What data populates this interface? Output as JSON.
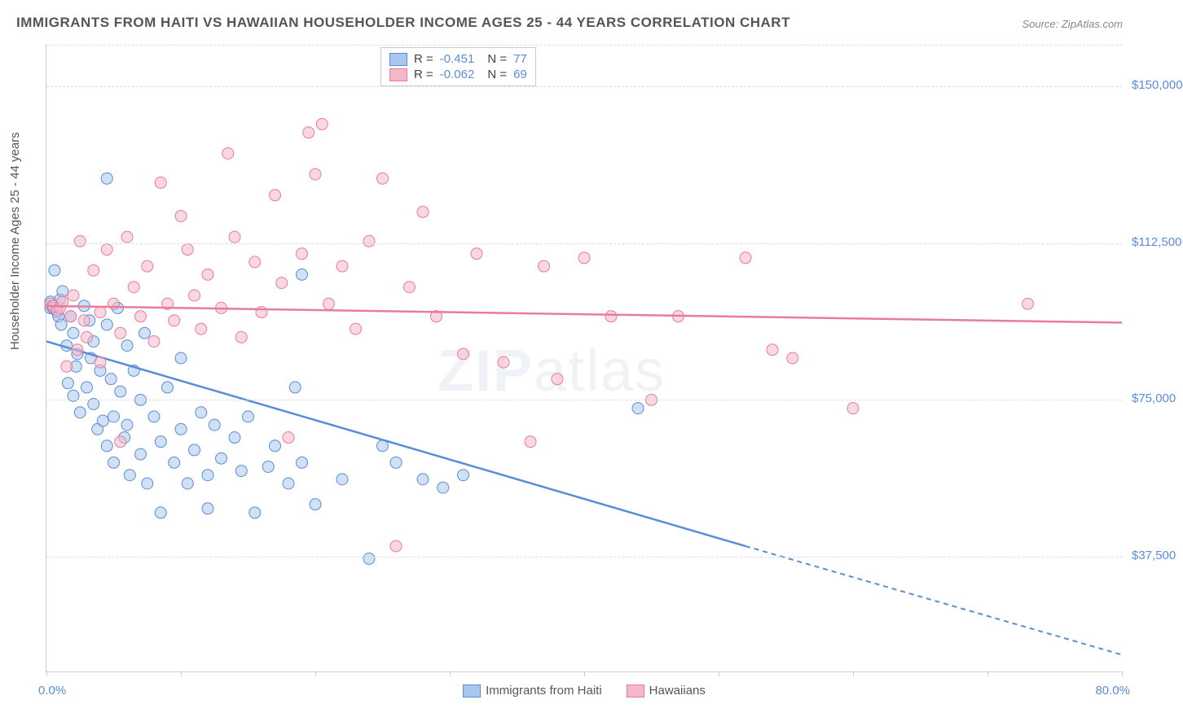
{
  "title": "IMMIGRANTS FROM HAITI VS HAWAIIAN HOUSEHOLDER INCOME AGES 25 - 44 YEARS CORRELATION CHART",
  "source": "Source: ZipAtlas.com",
  "watermark_a": "ZIP",
  "watermark_b": "atlas",
  "chart": {
    "type": "scatter",
    "ylabel": "Householder Income Ages 25 - 44 years",
    "xlim": [
      0,
      80
    ],
    "ylim": [
      10000,
      160000
    ],
    "xlim_labels": [
      "0.0%",
      "80.0%"
    ],
    "ytick_values": [
      37500,
      75000,
      112500,
      150000
    ],
    "ytick_labels": [
      "$37,500",
      "$75,000",
      "$112,500",
      "$150,000"
    ],
    "xtick_values": [
      0,
      10,
      20,
      30,
      40,
      50,
      60,
      70,
      80
    ],
    "background_color": "#ffffff",
    "grid_color": "#dddddd",
    "marker_radius": 7,
    "marker_opacity": 0.55,
    "series": [
      {
        "name": "Immigrants from Haiti",
        "color_fill": "#a9c7ec",
        "color_stroke": "#5b8dd6",
        "R": "-0.451",
        "N": "77",
        "trend": {
          "x1": 0,
          "y1": 89000,
          "x2_solid": 52,
          "y2_solid": 40000,
          "x2": 80,
          "y2": 14000
        },
        "points": [
          [
            0.3,
            98500
          ],
          [
            0.3,
            97000
          ],
          [
            0.4,
            97500
          ],
          [
            0.5,
            97000
          ],
          [
            0.6,
            106000
          ],
          [
            0.8,
            96000
          ],
          [
            0.9,
            95000
          ],
          [
            1.0,
            99000
          ],
          [
            1.1,
            93000
          ],
          [
            1.2,
            101000
          ],
          [
            1.5,
            88000
          ],
          [
            1.6,
            79000
          ],
          [
            1.8,
            95000
          ],
          [
            2.0,
            91000
          ],
          [
            2.0,
            76000
          ],
          [
            2.2,
            83000
          ],
          [
            2.3,
            86000
          ],
          [
            2.5,
            72000
          ],
          [
            2.8,
            97500
          ],
          [
            3.0,
            78000
          ],
          [
            3.2,
            94000
          ],
          [
            3.3,
            85000
          ],
          [
            3.5,
            89000
          ],
          [
            3.5,
            74000
          ],
          [
            3.8,
            68000
          ],
          [
            4.0,
            82000
          ],
          [
            4.2,
            70000
          ],
          [
            4.5,
            93000
          ],
          [
            4.5,
            64000
          ],
          [
            4.5,
            128000
          ],
          [
            4.8,
            80000
          ],
          [
            5.0,
            71000
          ],
          [
            5.0,
            60000
          ],
          [
            5.3,
            97000
          ],
          [
            5.5,
            77000
          ],
          [
            5.8,
            66000
          ],
          [
            6.0,
            88000
          ],
          [
            6.0,
            69000
          ],
          [
            6.2,
            57000
          ],
          [
            6.5,
            82000
          ],
          [
            7.0,
            62000
          ],
          [
            7.0,
            75000
          ],
          [
            7.3,
            91000
          ],
          [
            7.5,
            55000
          ],
          [
            8.0,
            71000
          ],
          [
            8.5,
            65000
          ],
          [
            8.5,
            48000
          ],
          [
            9.0,
            78000
          ],
          [
            9.5,
            60000
          ],
          [
            10.0,
            68000
          ],
          [
            10.0,
            85000
          ],
          [
            10.5,
            55000
          ],
          [
            11.0,
            63000
          ],
          [
            11.5,
            72000
          ],
          [
            12.0,
            57000
          ],
          [
            12.0,
            49000
          ],
          [
            12.5,
            69000
          ],
          [
            13.0,
            61000
          ],
          [
            14.0,
            66000
          ],
          [
            14.5,
            58000
          ],
          [
            15.0,
            71000
          ],
          [
            15.5,
            48000
          ],
          [
            16.5,
            59000
          ],
          [
            17.0,
            64000
          ],
          [
            18.0,
            55000
          ],
          [
            18.5,
            78000
          ],
          [
            19.0,
            60000
          ],
          [
            19.0,
            105000
          ],
          [
            20.0,
            50000
          ],
          [
            22.0,
            56000
          ],
          [
            24.0,
            37000
          ],
          [
            25.0,
            64000
          ],
          [
            26.0,
            60000
          ],
          [
            28.0,
            56000
          ],
          [
            29.5,
            54000
          ],
          [
            31.0,
            57000
          ],
          [
            44.0,
            73000
          ]
        ]
      },
      {
        "name": "Hawaiians",
        "color_fill": "#f5b8c9",
        "color_stroke": "#e77ba0",
        "R": "-0.062",
        "N": "69",
        "trend": {
          "x1": 0,
          "y1": 97500,
          "x2_solid": 80,
          "y2_solid": 93500,
          "x2": 80,
          "y2": 93500
        },
        "points": [
          [
            0.3,
            98000
          ],
          [
            0.5,
            97500
          ],
          [
            0.8,
            96500
          ],
          [
            1.0,
            97000
          ],
          [
            1.2,
            98500
          ],
          [
            1.5,
            83000
          ],
          [
            1.8,
            95000
          ],
          [
            2.0,
            100000
          ],
          [
            2.3,
            87000
          ],
          [
            2.5,
            113000
          ],
          [
            2.8,
            94000
          ],
          [
            3.0,
            90000
          ],
          [
            3.5,
            106000
          ],
          [
            4.0,
            96000
          ],
          [
            4.0,
            84000
          ],
          [
            4.5,
            111000
          ],
          [
            5.0,
            98000
          ],
          [
            5.5,
            91000
          ],
          [
            5.5,
            65000
          ],
          [
            6.0,
            114000
          ],
          [
            6.5,
            102000
          ],
          [
            7.0,
            95000
          ],
          [
            7.5,
            107000
          ],
          [
            8.0,
            89000
          ],
          [
            8.5,
            127000
          ],
          [
            9.0,
            98000
          ],
          [
            9.5,
            94000
          ],
          [
            10.0,
            119000
          ],
          [
            10.5,
            111000
          ],
          [
            11.0,
            100000
          ],
          [
            11.5,
            92000
          ],
          [
            12.0,
            105000
          ],
          [
            13.0,
            97000
          ],
          [
            13.5,
            134000
          ],
          [
            14.0,
            114000
          ],
          [
            14.5,
            90000
          ],
          [
            15.5,
            108000
          ],
          [
            16.0,
            96000
          ],
          [
            17.0,
            124000
          ],
          [
            17.5,
            103000
          ],
          [
            18.0,
            66000
          ],
          [
            19.0,
            110000
          ],
          [
            19.5,
            139000
          ],
          [
            20.0,
            129000
          ],
          [
            20.5,
            141000
          ],
          [
            21.0,
            98000
          ],
          [
            22.0,
            107000
          ],
          [
            23.0,
            92000
          ],
          [
            24.0,
            113000
          ],
          [
            25.0,
            128000
          ],
          [
            26.0,
            40000
          ],
          [
            27.0,
            102000
          ],
          [
            28.0,
            120000
          ],
          [
            29.0,
            95000
          ],
          [
            31.0,
            86000
          ],
          [
            32.0,
            110000
          ],
          [
            34.0,
            84000
          ],
          [
            36.0,
            65000
          ],
          [
            37.0,
            107000
          ],
          [
            38.0,
            80000
          ],
          [
            40.0,
            109000
          ],
          [
            42.0,
            95000
          ],
          [
            45.0,
            75000
          ],
          [
            47.0,
            95000
          ],
          [
            52.0,
            109000
          ],
          [
            54.0,
            87000
          ],
          [
            55.5,
            85000
          ],
          [
            60.0,
            73000
          ],
          [
            73.0,
            98000
          ]
        ]
      }
    ]
  },
  "legend_bottom": [
    {
      "label": "Immigrants from Haiti",
      "fill": "#a9c7ec",
      "stroke": "#5b8dd6"
    },
    {
      "label": "Hawaiians",
      "fill": "#f5b8c9",
      "stroke": "#e77ba0"
    }
  ]
}
